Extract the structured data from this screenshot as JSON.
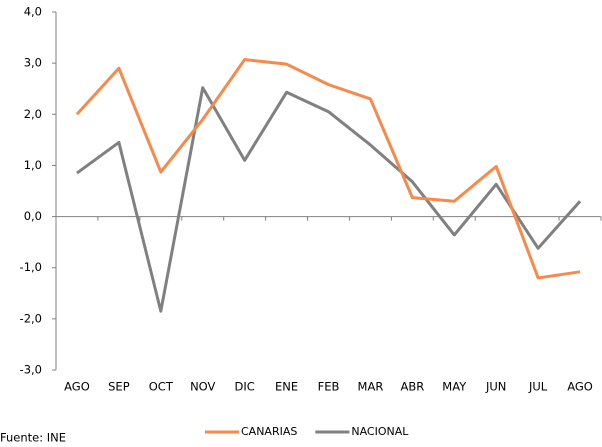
{
  "chart_data": {
    "type": "line",
    "categories": [
      "AGO",
      "SEP",
      "OCT",
      "NOV",
      "DIC",
      "ENE",
      "FEB",
      "MAR",
      "ABR",
      "MAY",
      "JUN",
      "JUL",
      "AGO"
    ],
    "series": [
      {
        "name": "CANARIAS",
        "color": "#f7894a",
        "values": [
          2.0,
          2.9,
          0.87,
          1.9,
          3.07,
          2.98,
          2.58,
          2.3,
          0.37,
          0.3,
          0.98,
          -1.2,
          -1.08
        ]
      },
      {
        "name": "NACIONAL",
        "color": "#808080",
        "values": [
          0.85,
          1.45,
          -1.85,
          2.52,
          1.1,
          2.43,
          2.05,
          1.4,
          0.68,
          -0.36,
          0.63,
          -0.62,
          0.3
        ]
      }
    ],
    "ylim": [
      -3,
      4
    ],
    "yticks": [
      {
        "value": -3,
        "label": "-3,0"
      },
      {
        "value": -2,
        "label": "-2,0"
      },
      {
        "value": -1,
        "label": "-1,0"
      },
      {
        "value": 0,
        "label": "0,0"
      },
      {
        "value": 1,
        "label": "1,0"
      },
      {
        "value": 2,
        "label": "2,0"
      },
      {
        "value": 3,
        "label": "3,0"
      },
      {
        "value": 4,
        "label": "4,0"
      }
    ],
    "grid": false,
    "legend": "bottom",
    "source": "Fuente: INE"
  }
}
